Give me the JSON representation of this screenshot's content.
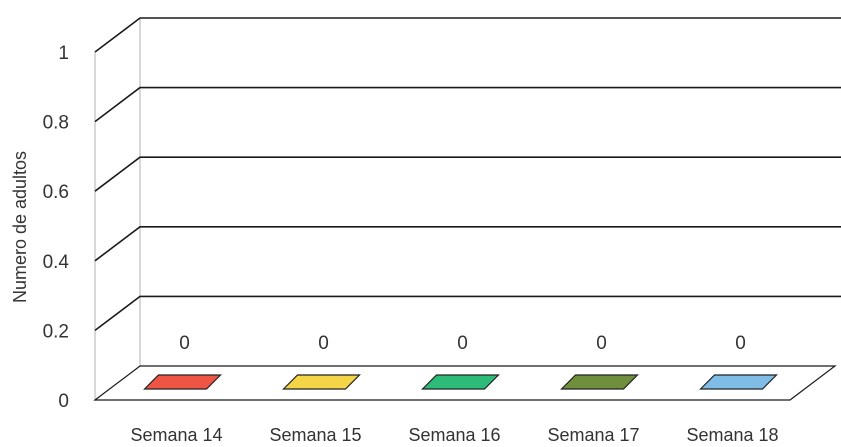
{
  "chart_data": {
    "type": "bar",
    "title": "",
    "xlabel": "",
    "ylabel": "Numero de  adultos",
    "categories": [
      "Semana 14",
      "Semana 15",
      "Semana 16",
      "Semana 17",
      "Semana 18"
    ],
    "values": [
      0,
      0,
      0,
      0,
      0
    ],
    "data_labels": [
      "0",
      "0",
      "0",
      "0",
      "0"
    ],
    "colors": [
      "#ee5545",
      "#f4d548",
      "#2dbb7a",
      "#6f8f3c",
      "#7fbde6"
    ],
    "yticks": [
      "0",
      "0.2",
      "0.4",
      "0.6",
      "0.8",
      "1"
    ],
    "ylim": [
      0,
      1
    ],
    "grid": true,
    "style": "3d-column"
  }
}
